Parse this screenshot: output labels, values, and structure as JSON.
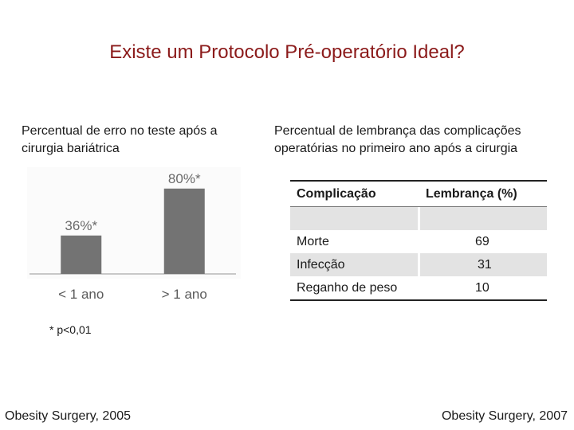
{
  "title": "Existe um Protocolo Pré-operatório Ideal?",
  "left_panel": {
    "subtitle": "Percentual de erro no teste após a cirurgia bariátrica",
    "footnote": "* p<0,01",
    "source": "Obesity Surgery, 2005"
  },
  "right_panel": {
    "subtitle": "Percentual de lembrança das complicações operatórias no primeiro ano após a cirurgia",
    "source": "Obesity Surgery, 2007",
    "table": {
      "headers": [
        "Complicação",
        "Lembrança (%)"
      ],
      "rows": [
        {
          "name": "",
          "value": ""
        },
        {
          "name": "Morte",
          "value": "69"
        },
        {
          "name": "Infecção",
          "value": "31"
        },
        {
          "name": "Reganho de peso",
          "value": "10"
        }
      ]
    }
  },
  "chart_data": {
    "type": "bar",
    "categories": [
      "< 1 ano",
      "> 1 ano"
    ],
    "values": [
      36,
      80
    ],
    "data_labels": [
      "36%*",
      "80%*"
    ],
    "title": "Percentual de erro no teste após a cirurgia bariátrica",
    "xlabel": "",
    "ylabel": "",
    "ylim": [
      0,
      100
    ],
    "grid": false,
    "bar_color": "#737373"
  }
}
